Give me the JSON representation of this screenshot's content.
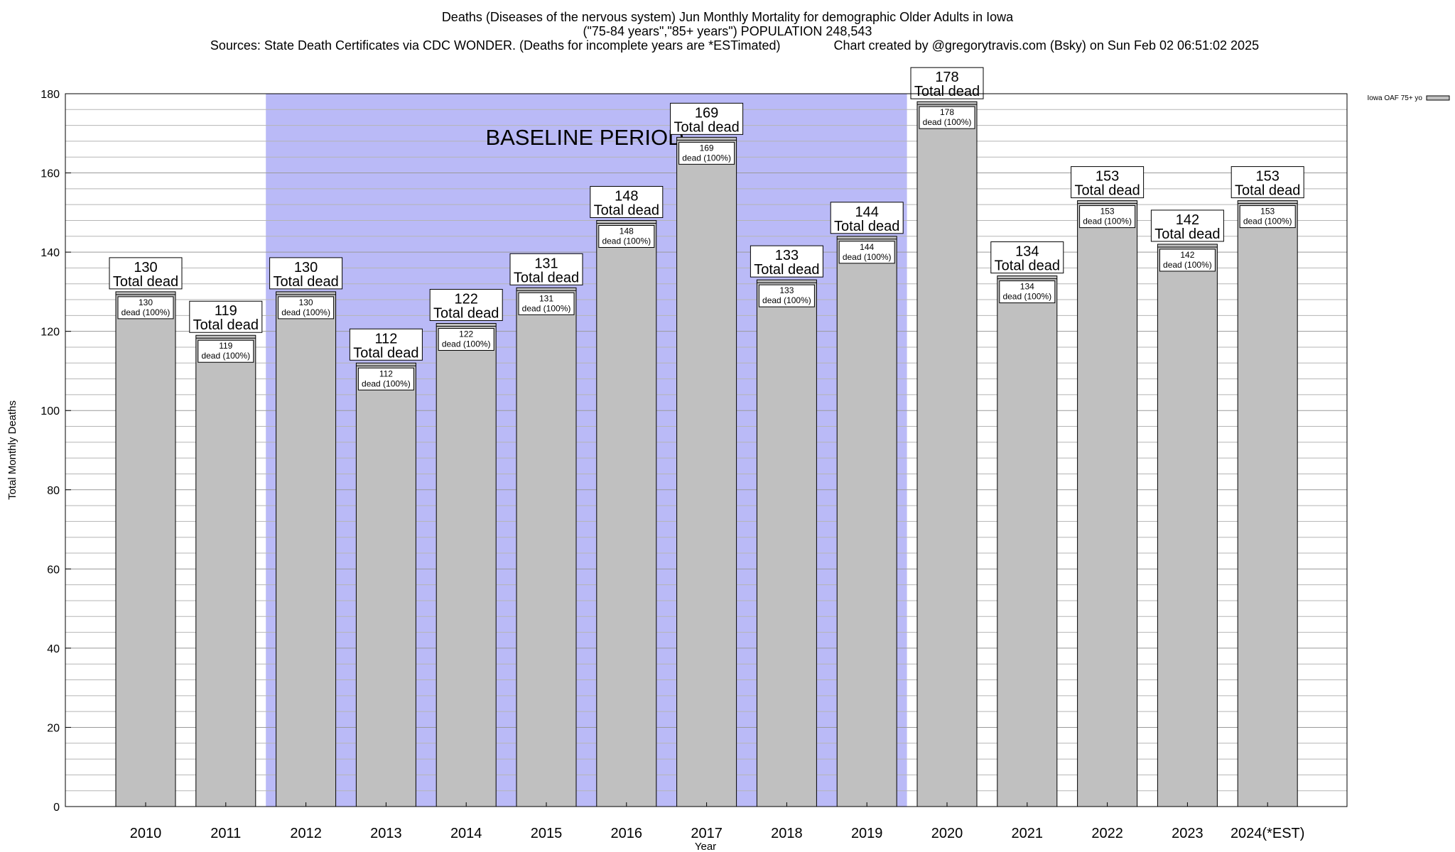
{
  "header": {
    "title_line1": "Deaths (Diseases of the nervous system) Jun Monthly Mortality for demographic Older Adults in Iowa",
    "title_line2": "(\"75-84 years\",\"85+ years\") POPULATION 248,543",
    "title_line3": "Sources: State Death Certificates via CDC WONDER. (Deaths for incomplete years are *ESTimated)               Chart created by @gregorytravis.com (Bsky) on Sun Feb 02 06:51:02 2025"
  },
  "chart_data": {
    "type": "bar",
    "ylabel": "Total Monthly Deaths",
    "xlabel": "Year",
    "ylim": [
      0,
      180
    ],
    "y_ticks": [
      0,
      20,
      40,
      60,
      80,
      100,
      120,
      140,
      160,
      180
    ],
    "grid": "horizontal minor lines every 4",
    "categories": [
      "2010",
      "2011",
      "2012",
      "2013",
      "2014",
      "2015",
      "2016",
      "2017",
      "2018",
      "2019",
      "2020",
      "2021",
      "2022",
      "2023",
      "2024(*EST)"
    ],
    "series": [
      {
        "name": "Iowa OAF 75+ yo",
        "values": [
          130,
          119,
          130,
          112,
          122,
          131,
          148,
          169,
          133,
          144,
          178,
          134,
          153,
          142,
          153
        ],
        "color": "#c0c0c0"
      }
    ],
    "total_label_suffix": "Total dead",
    "inner_label_suffix": "dead (100%)",
    "baseline_period": {
      "label": "BASELINE PERIOD",
      "from_category": "2012",
      "to_category": "2019",
      "color": "#babaf7"
    },
    "legend_placement": "top-right"
  }
}
